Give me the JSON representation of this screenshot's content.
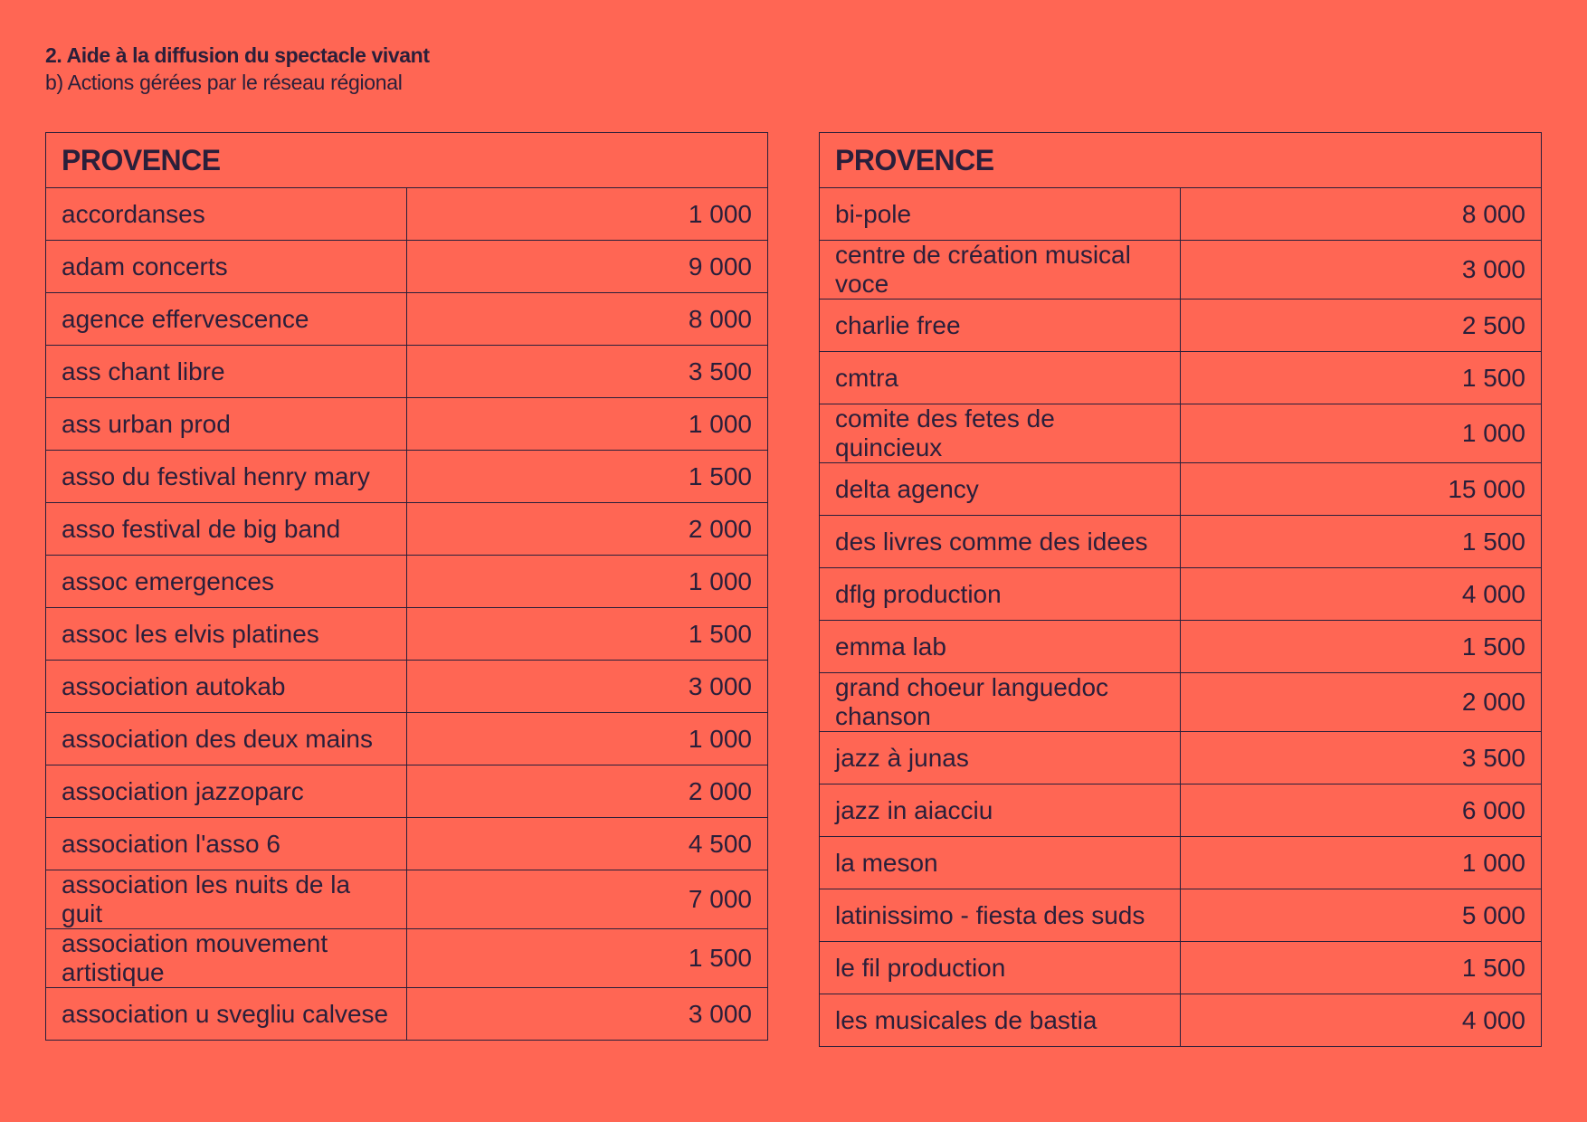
{
  "header": {
    "title": "2. Aide à la diffusion du spectacle vivant",
    "subtitle": "b) Actions gérées par le réseau régional"
  },
  "tables": [
    {
      "heading": "PROVENCE",
      "rows": [
        {
          "name": "accordanses",
          "amount": "1 000"
        },
        {
          "name": "adam concerts",
          "amount": "9 000"
        },
        {
          "name": "agence effervescence",
          "amount": "8 000"
        },
        {
          "name": "ass chant libre",
          "amount": "3 500"
        },
        {
          "name": "ass urban prod",
          "amount": "1 000"
        },
        {
          "name": "asso du festival henry mary",
          "amount": "1 500"
        },
        {
          "name": "asso festival de big band",
          "amount": "2 000"
        },
        {
          "name": "assoc emergences",
          "amount": "1 000"
        },
        {
          "name": "assoc les elvis platines",
          "amount": "1 500"
        },
        {
          "name": "association autokab",
          "amount": "3 000"
        },
        {
          "name": "association des deux mains",
          "amount": "1 000"
        },
        {
          "name": "association jazzoparc",
          "amount": "2 000"
        },
        {
          "name": "association l'asso 6",
          "amount": "4 500"
        },
        {
          "name": "association les nuits de la guit",
          "amount": "7 000"
        },
        {
          "name": "association mouvement artistique",
          "amount": "1 500"
        },
        {
          "name": "association u svegliu calvese",
          "amount": "3 000"
        }
      ]
    },
    {
      "heading": "PROVENCE",
      "rows": [
        {
          "name": "bi-pole",
          "amount": "8 000"
        },
        {
          "name": "centre de création musical voce",
          "amount": "3 000"
        },
        {
          "name": "charlie free",
          "amount": "2 500"
        },
        {
          "name": "cmtra",
          "amount": "1 500"
        },
        {
          "name": "comite des fetes de quincieux",
          "amount": "1 000"
        },
        {
          "name": "delta agency",
          "amount": "15 000"
        },
        {
          "name": "des livres comme des idees",
          "amount": "1 500"
        },
        {
          "name": "dflg production",
          "amount": "4 000"
        },
        {
          "name": "emma lab",
          "amount": "1 500"
        },
        {
          "name": "grand choeur languedoc chanson",
          "amount": "2 000"
        },
        {
          "name": "jazz à junas",
          "amount": "3 500"
        },
        {
          "name": "jazz in aiacciu",
          "amount": "6 000"
        },
        {
          "name": "la meson",
          "amount": "1 000"
        },
        {
          "name": "latinissimo - fiesta des suds",
          "amount": "5 000"
        },
        {
          "name": "le fil production",
          "amount": "1 500"
        },
        {
          "name": "les musicales de bastia",
          "amount": "4 000"
        }
      ]
    }
  ]
}
